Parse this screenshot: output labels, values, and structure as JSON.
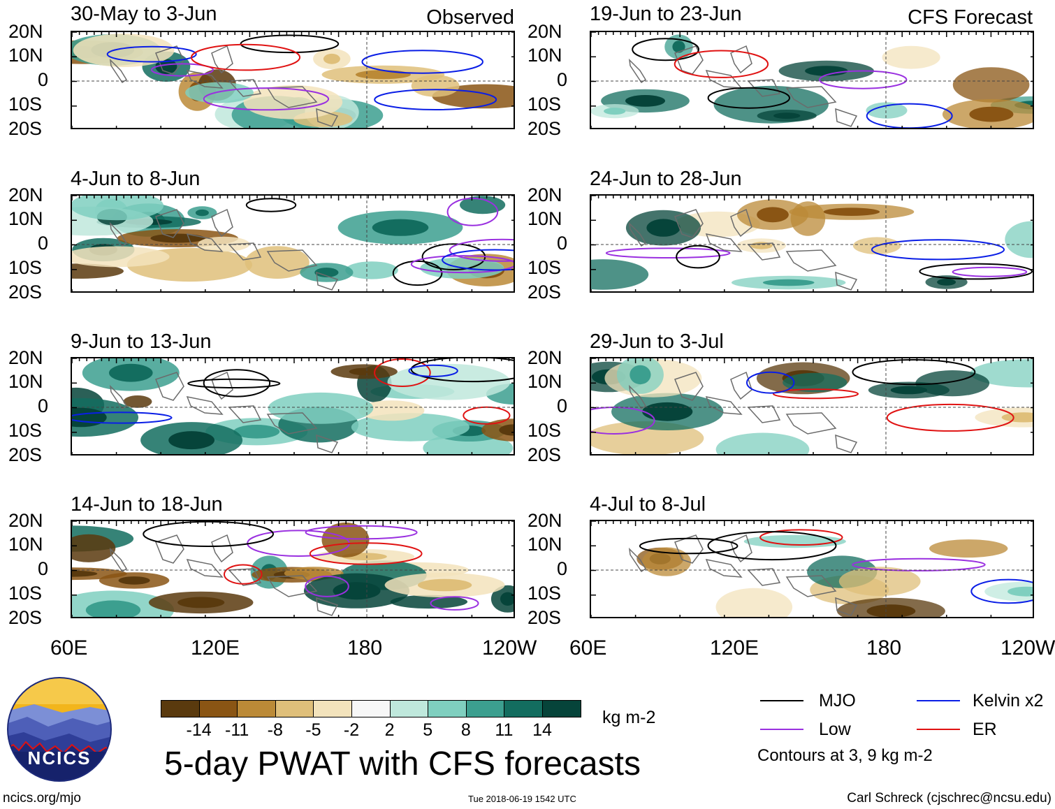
{
  "header": {
    "left_label": "Observed",
    "right_label": "CFS Forecast"
  },
  "panels": [
    {
      "title": "30-May to 3-Jun",
      "column": "observed",
      "row": 0
    },
    {
      "title": "4-Jun to 8-Jun",
      "column": "observed",
      "row": 1
    },
    {
      "title": "9-Jun to 13-Jun",
      "column": "observed",
      "row": 2
    },
    {
      "title": "14-Jun to 18-Jun",
      "column": "observed",
      "row": 3
    },
    {
      "title": "19-Jun to 23-Jun",
      "column": "forecast",
      "row": 0
    },
    {
      "title": "24-Jun to 28-Jun",
      "column": "forecast",
      "row": 1
    },
    {
      "title": "29-Jun to 3-Jul",
      "column": "forecast",
      "row": 2
    },
    {
      "title": "4-Jul to 8-Jul",
      "column": "forecast",
      "row": 3
    }
  ],
  "axes": {
    "lat_labels": [
      "20N",
      "10N",
      "0",
      "10S",
      "20S"
    ],
    "lon_labels": [
      "60E",
      "120E",
      "180",
      "120W"
    ]
  },
  "colorbar": {
    "ticks": [
      "-14",
      "-11",
      "-8",
      "-5",
      "-2",
      "2",
      "5",
      "8",
      "11",
      "14"
    ],
    "colors": [
      "#5a3a0e",
      "#8a5514",
      "#bb8a37",
      "#dfbf7a",
      "#f3e3bc",
      "#f7f7f7",
      "#bfe8dc",
      "#7fcfbf",
      "#3c9f8f",
      "#136d5f",
      "#06443a"
    ],
    "units": "kg m-2"
  },
  "legend": {
    "items": [
      {
        "label": "MJO",
        "color": "#000000"
      },
      {
        "label": "Low",
        "color": "#9a30e0"
      },
      {
        "label": "Kelvin x2",
        "color": "#0a1ee6"
      },
      {
        "label": "ER",
        "color": "#e01212"
      }
    ],
    "note": "Contours at 3, 9 kg m-2"
  },
  "footer": {
    "title": "5-day PWAT with CFS forecasts",
    "url": "ncics.org/mjo",
    "timestamp": "Tue 2018-06-19 1542 UTC",
    "credit": "Carl Schreck (cjschrec@ncsu.edu)"
  },
  "logo": {
    "text": "NCICS"
  }
}
